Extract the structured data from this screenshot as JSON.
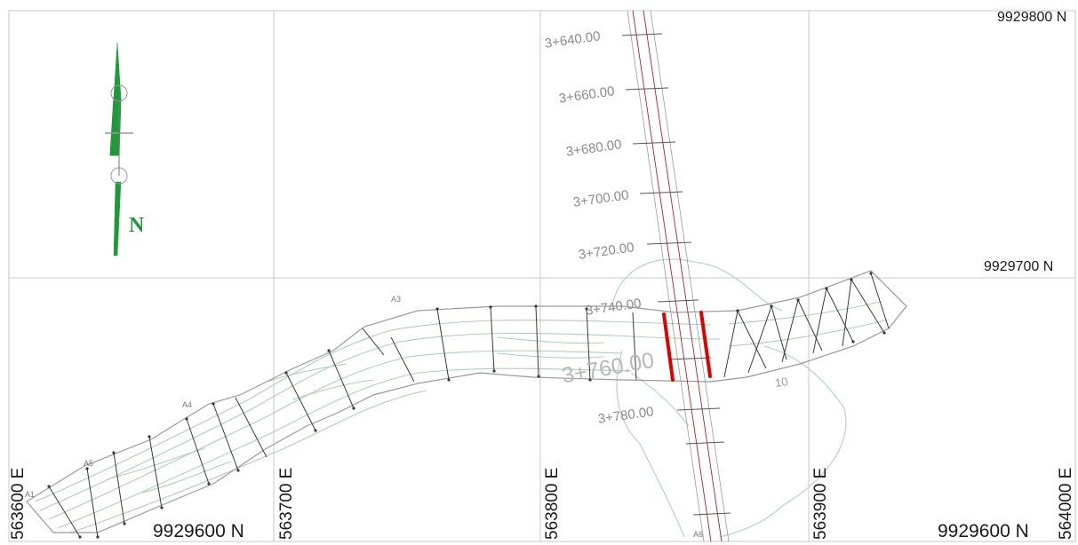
{
  "map": {
    "grid_labels": {
      "north_top": "9929800 N",
      "north_mid": "9929700 N",
      "north_bottom_left": "9929600 N",
      "north_bottom_right": "9929600 N",
      "east": [
        "563600 E",
        "563700 E",
        "563800 E",
        "563900 E",
        "564000 E"
      ]
    },
    "chainages": [
      "3+640.00",
      "3+660.00",
      "3+680.00",
      "3+700.00",
      "3+720.00",
      "3+740.00",
      "3+760.00",
      "3+780.00"
    ],
    "point_labels": [
      "A1",
      "A3",
      "A4",
      "A5",
      "A6"
    ],
    "contour_label": "10",
    "north_arrow_letter": "N",
    "colors": {
      "grid": "#c8c8c8",
      "contour": "#a9d4b0",
      "creek": "#b7d8cf",
      "road_axis": "#b0202a",
      "bridge": "#e00000",
      "section": "#3a3a3a",
      "north_arrow": "#1f9a3a"
    }
  }
}
